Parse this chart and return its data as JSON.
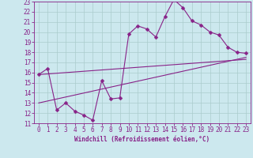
{
  "title": "",
  "xlabel": "Windchill (Refroidissement éolien,°C)",
  "ylabel": "",
  "xlim": [
    -0.5,
    23.5
  ],
  "ylim": [
    11,
    23
  ],
  "xticks": [
    0,
    1,
    2,
    3,
    4,
    5,
    6,
    7,
    8,
    9,
    10,
    11,
    12,
    13,
    14,
    15,
    16,
    17,
    18,
    19,
    20,
    21,
    22,
    23
  ],
  "yticks": [
    11,
    12,
    13,
    14,
    15,
    16,
    17,
    18,
    19,
    20,
    21,
    22,
    23
  ],
  "bg_color": "#cce8ee",
  "grid_color": "#aacccc",
  "line_color": "#882288",
  "line1_x": [
    0,
    1,
    2,
    3,
    4,
    5,
    6,
    7,
    8,
    9,
    10,
    11,
    12,
    13,
    14,
    15,
    16,
    17,
    18,
    19,
    20,
    21,
    22,
    23
  ],
  "line1_y": [
    15.8,
    16.4,
    12.3,
    13.0,
    12.2,
    11.8,
    11.3,
    15.2,
    13.4,
    13.5,
    19.8,
    20.6,
    20.3,
    19.5,
    21.5,
    23.2,
    22.4,
    21.1,
    20.7,
    20.0,
    19.7,
    18.5,
    18.0,
    17.9
  ],
  "line2_x": [
    0,
    23
  ],
  "line2_y": [
    15.8,
    17.3
  ],
  "line3_x": [
    0,
    23
  ],
  "line3_y": [
    13.0,
    17.5
  ],
  "marker_size": 2.5,
  "line_width": 0.8,
  "tick_fontsize": 5.5,
  "xlabel_fontsize": 5.5
}
